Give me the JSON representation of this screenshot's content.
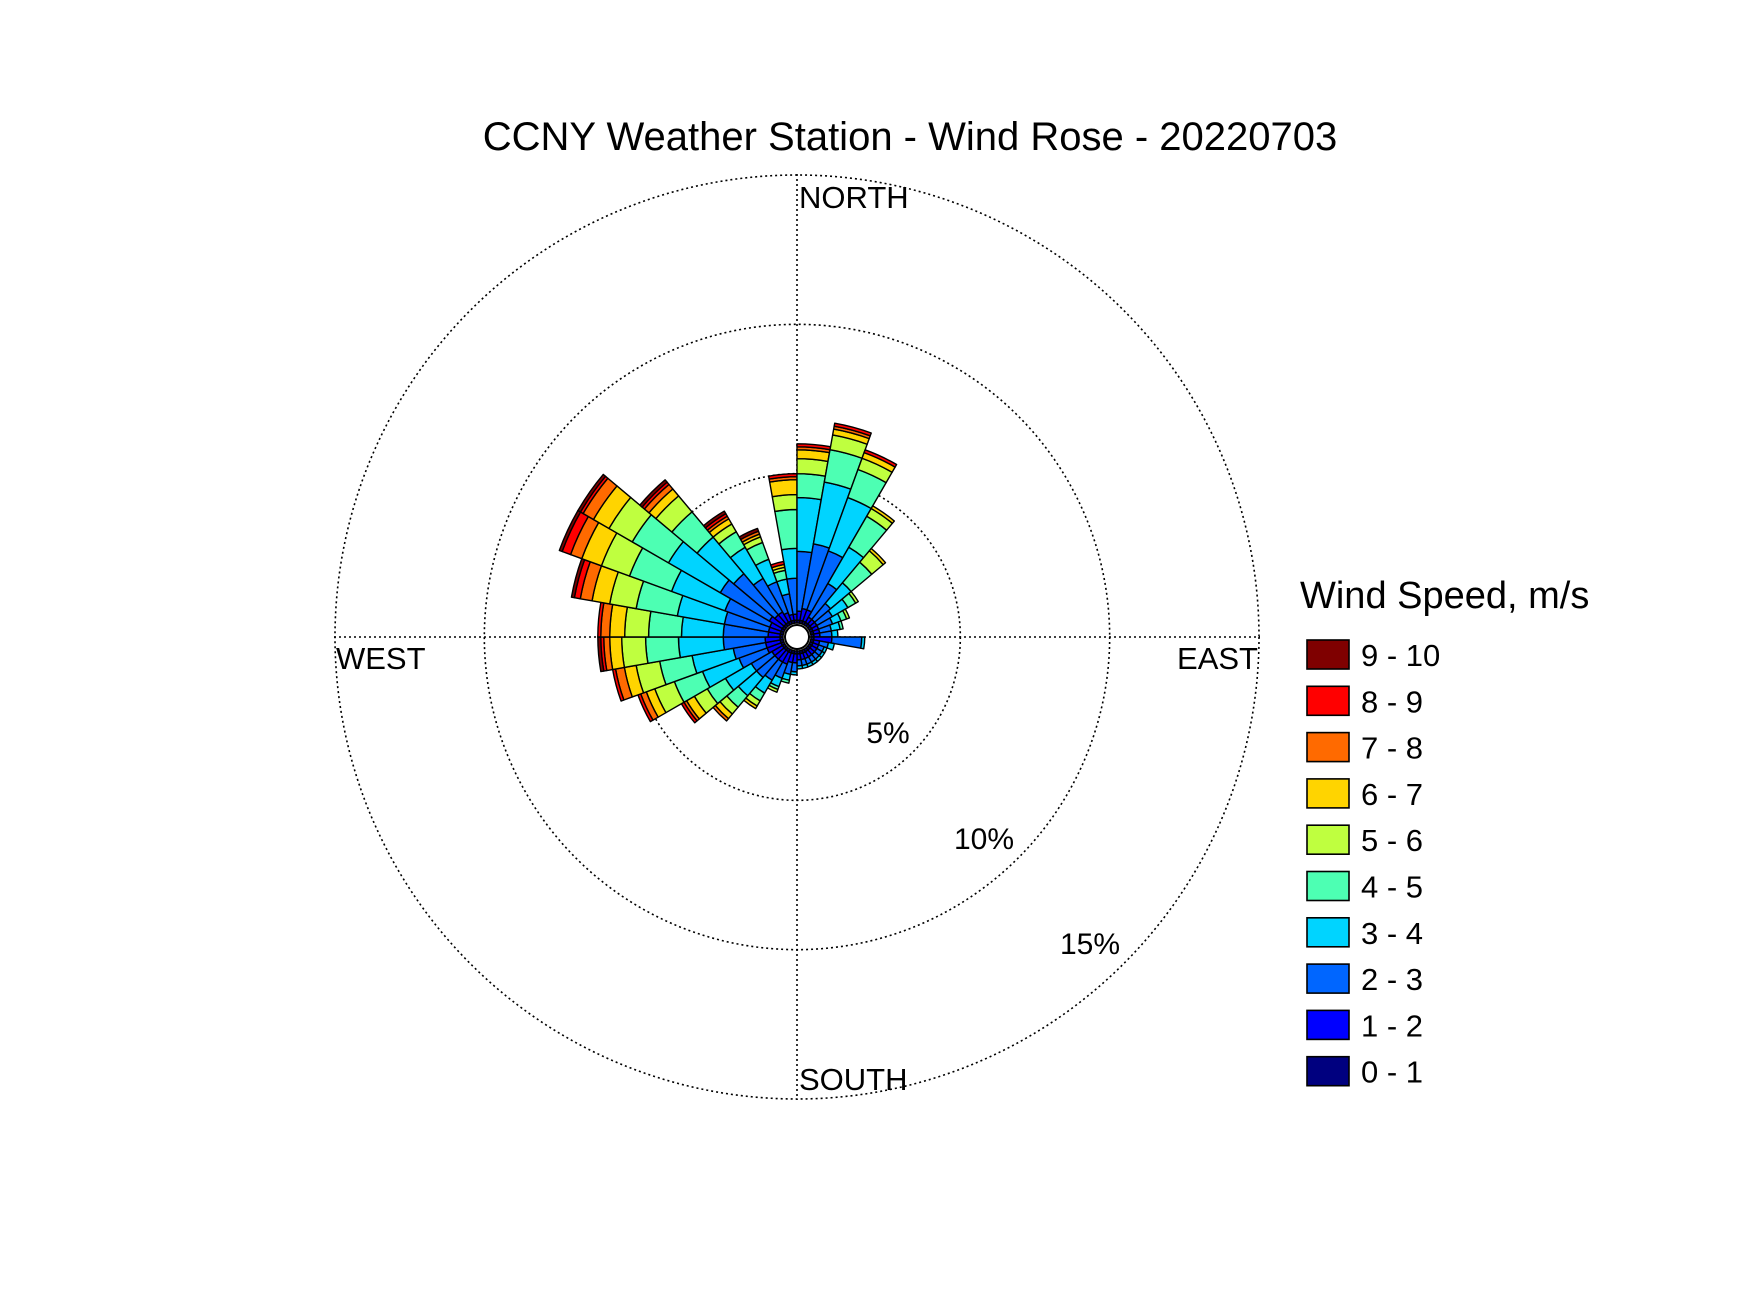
{
  "chart_data": {
    "type": "wind_rose",
    "title": "CCNY Weather Station - Wind Rose - 20220703",
    "direction_labels": {
      "north": "NORTH",
      "east": "EAST",
      "south": "SOUTH",
      "west": "WEST"
    },
    "radial_ticks": [
      {
        "value": 5,
        "label": "5%"
      },
      {
        "value": 10,
        "label": "10%"
      },
      {
        "value": 15,
        "label": "15%"
      }
    ],
    "rmax": 15,
    "grid": true,
    "legend": {
      "title": "Wind Speed, m/s",
      "position": "right",
      "entries": [
        {
          "label": "9 - 10",
          "color": "#7f0000"
        },
        {
          "label": "8 - 9",
          "color": "#ff0000"
        },
        {
          "label": "7 - 8",
          "color": "#ff6a00"
        },
        {
          "label": "6 - 7",
          "color": "#ffd400"
        },
        {
          "label": "5 - 6",
          "color": "#bfff3f"
        },
        {
          "label": "4 - 5",
          "color": "#4dffb3"
        },
        {
          "label": "3 - 4",
          "color": "#00d4ff"
        },
        {
          "label": "2 - 3",
          "color": "#0066ff"
        },
        {
          "label": "1 - 2",
          "color": "#0000ff"
        },
        {
          "label": "0 - 1",
          "color": "#00007f"
        }
      ]
    },
    "bin_order": [
      "0 - 1",
      "1 - 2",
      "2 - 3",
      "3 - 4",
      "4 - 5",
      "5 - 6",
      "6 - 7",
      "7 - 8",
      "8 - 9",
      "9 - 10"
    ],
    "sector_width_deg": 10,
    "sectors": [
      {
        "direction_deg": 355,
        "cumulative_percent": [
          0.1,
          0.3,
          1.5,
          2.5,
          3.8,
          4.3,
          4.8,
          4.9,
          5.0,
          5.0
        ]
      },
      {
        "direction_deg": 5,
        "cumulative_percent": [
          0.1,
          0.4,
          2.4,
          4.2,
          5.0,
          5.5,
          5.8,
          5.9,
          6.0,
          6.0
        ]
      },
      {
        "direction_deg": 15,
        "cumulative_percent": [
          0.1,
          0.5,
          2.7,
          4.8,
          5.9,
          6.4,
          6.6,
          6.7,
          6.8,
          6.8
        ]
      },
      {
        "direction_deg": 25,
        "cumulative_percent": [
          0.1,
          0.5,
          2.6,
          4.5,
          5.5,
          5.9,
          6.1,
          6.1,
          6.2,
          6.2
        ]
      },
      {
        "direction_deg": 35,
        "cumulative_percent": [
          0.1,
          0.3,
          1.6,
          3.0,
          4.2,
          4.5,
          4.6,
          4.6,
          4.6,
          4.6
        ]
      },
      {
        "direction_deg": 45,
        "cumulative_percent": [
          0.1,
          0.3,
          1.0,
          1.9,
          2.8,
          3.3,
          3.4,
          3.4,
          3.4,
          3.4
        ]
      },
      {
        "direction_deg": 55,
        "cumulative_percent": [
          0.1,
          0.3,
          0.9,
          1.5,
          1.8,
          1.9,
          1.9,
          1.9,
          1.9,
          1.9
        ]
      },
      {
        "direction_deg": 65,
        "cumulative_percent": [
          0.1,
          0.3,
          0.8,
          1.1,
          1.3,
          1.4,
          1.4,
          1.4,
          1.4,
          1.4
        ]
      },
      {
        "direction_deg": 75,
        "cumulative_percent": [
          0.1,
          0.3,
          0.7,
          1.0,
          1.1,
          1.1,
          1.1,
          1.1,
          1.1,
          1.1
        ]
      },
      {
        "direction_deg": 85,
        "cumulative_percent": [
          0.1,
          0.3,
          0.7,
          0.9,
          0.9,
          0.9,
          0.9,
          0.9,
          0.9,
          0.9
        ]
      },
      {
        "direction_deg": 95,
        "cumulative_percent": [
          0.1,
          0.7,
          1.7,
          1.8,
          1.8,
          1.8,
          1.8,
          1.8,
          1.8,
          1.8
        ]
      },
      {
        "direction_deg": 105,
        "cumulative_percent": [
          0.1,
          0.3,
          0.6,
          0.8,
          0.8,
          0.8,
          0.8,
          0.8,
          0.8,
          0.8
        ]
      },
      {
        "direction_deg": 115,
        "cumulative_percent": [
          0.1,
          0.3,
          0.5,
          0.6,
          0.6,
          0.6,
          0.6,
          0.6,
          0.6,
          0.6
        ]
      },
      {
        "direction_deg": 125,
        "cumulative_percent": [
          0.1,
          0.3,
          0.5,
          0.6,
          0.6,
          0.6,
          0.6,
          0.6,
          0.6,
          0.6
        ]
      },
      {
        "direction_deg": 135,
        "cumulative_percent": [
          0.1,
          0.3,
          0.5,
          0.6,
          0.6,
          0.6,
          0.6,
          0.6,
          0.6,
          0.6
        ]
      },
      {
        "direction_deg": 145,
        "cumulative_percent": [
          0.1,
          0.3,
          0.5,
          0.6,
          0.6,
          0.6,
          0.6,
          0.6,
          0.6,
          0.6
        ]
      },
      {
        "direction_deg": 155,
        "cumulative_percent": [
          0.1,
          0.3,
          0.5,
          0.6,
          0.6,
          0.6,
          0.6,
          0.6,
          0.6,
          0.6
        ]
      },
      {
        "direction_deg": 165,
        "cumulative_percent": [
          0.1,
          0.3,
          0.5,
          0.6,
          0.6,
          0.6,
          0.6,
          0.6,
          0.6,
          0.6
        ]
      },
      {
        "direction_deg": 175,
        "cumulative_percent": [
          0.1,
          0.3,
          0.5,
          0.6,
          0.6,
          0.6,
          0.6,
          0.6,
          0.6,
          0.6
        ]
      },
      {
        "direction_deg": 185,
        "cumulative_percent": [
          0.1,
          0.4,
          0.7,
          0.8,
          0.8,
          0.8,
          0.8,
          0.8,
          0.8,
          0.8
        ]
      },
      {
        "direction_deg": 195,
        "cumulative_percent": [
          0.1,
          0.4,
          0.8,
          1.0,
          1.1,
          1.1,
          1.1,
          1.1,
          1.1,
          1.1
        ]
      },
      {
        "direction_deg": 205,
        "cumulative_percent": [
          0.1,
          0.5,
          1.0,
          1.3,
          1.4,
          1.5,
          1.5,
          1.5,
          1.5,
          1.5
        ]
      },
      {
        "direction_deg": 215,
        "cumulative_percent": [
          0.1,
          0.5,
          1.2,
          1.7,
          2.0,
          2.2,
          2.3,
          2.3,
          2.3,
          2.3
        ]
      },
      {
        "direction_deg": 225,
        "cumulative_percent": [
          0.1,
          0.5,
          1.3,
          2.1,
          2.6,
          2.9,
          3.1,
          3.2,
          3.2,
          3.2
        ]
      },
      {
        "direction_deg": 235,
        "cumulative_percent": [
          0.1,
          0.5,
          1.3,
          2.3,
          3.0,
          3.5,
          3.8,
          3.9,
          4.0,
          4.0
        ]
      },
      {
        "direction_deg": 245,
        "cumulative_percent": [
          0.1,
          0.6,
          1.6,
          2.9,
          3.9,
          4.6,
          4.9,
          5.1,
          5.2,
          5.2
        ]
      },
      {
        "direction_deg": 255,
        "cumulative_percent": [
          0.1,
          0.6,
          1.7,
          3.1,
          4.2,
          5.0,
          5.4,
          5.7,
          5.8,
          5.8
        ]
      },
      {
        "direction_deg": 265,
        "cumulative_percent": [
          0.1,
          0.6,
          2.0,
          3.5,
          4.6,
          5.4,
          5.8,
          6.0,
          6.1,
          6.2
        ]
      },
      {
        "direction_deg": 275,
        "cumulative_percent": [
          0.1,
          0.5,
          2.0,
          3.4,
          4.5,
          5.3,
          5.8,
          6.1,
          6.2,
          6.2
        ]
      },
      {
        "direction_deg": 285,
        "cumulative_percent": [
          0.1,
          0.5,
          2.0,
          3.6,
          5.0,
          5.9,
          6.5,
          6.9,
          7.1,
          7.2
        ]
      },
      {
        "direction_deg": 295,
        "cumulative_percent": [
          0.1,
          0.5,
          2.1,
          4.0,
          5.5,
          6.5,
          7.2,
          7.6,
          7.9,
          8.0
        ]
      },
      {
        "direction_deg": 305,
        "cumulative_percent": [
          0.1,
          0.6,
          2.5,
          4.5,
          5.9,
          6.8,
          7.4,
          7.8,
          7.9,
          8.0
        ]
      },
      {
        "direction_deg": 315,
        "cumulative_percent": [
          0.1,
          0.5,
          2.3,
          3.9,
          5.0,
          5.7,
          6.0,
          6.2,
          6.3,
          6.4
        ]
      },
      {
        "direction_deg": 325,
        "cumulative_percent": [
          0.1,
          0.5,
          1.8,
          3.0,
          3.6,
          3.9,
          4.1,
          4.2,
          4.3,
          4.4
        ]
      },
      {
        "direction_deg": 335,
        "cumulative_percent": [
          0.1,
          0.4,
          1.5,
          2.3,
          2.9,
          3.1,
          3.2,
          3.3,
          3.3,
          3.4
        ]
      },
      {
        "direction_deg": 345,
        "cumulative_percent": [
          0.1,
          0.3,
          1.0,
          1.5,
          1.8,
          1.9,
          2.0,
          2.0,
          2.1,
          2.1
        ]
      }
    ]
  }
}
